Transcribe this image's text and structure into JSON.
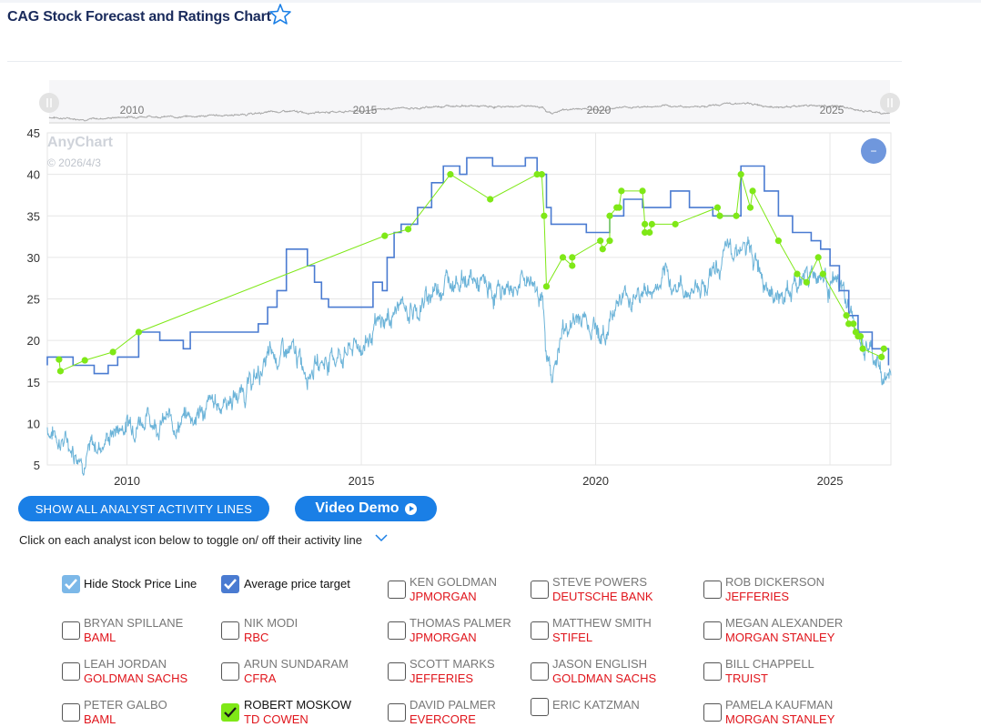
{
  "header": {
    "title": "CAG Stock Forecast and Ratings Chart"
  },
  "navigator": {
    "year_labels": [
      "2010",
      "2015",
      "2020",
      "2025"
    ]
  },
  "watermark": {
    "brand": "AnyChart",
    "date": "© 2026/4/3"
  },
  "chart_data": {
    "type": "line",
    "xlim": [
      2008.3,
      2026.3
    ],
    "ylim": [
      5,
      45
    ],
    "x_ticks": [
      "2010",
      "2015",
      "2020",
      "2025"
    ],
    "y_ticks": [
      "5",
      "10",
      "15",
      "20",
      "25",
      "30",
      "35",
      "40",
      "45"
    ],
    "grid": true,
    "colors": {
      "price": "#6bb3d8",
      "target": "#4a7bd1",
      "ratings": "#7fe817"
    },
    "series": [
      {
        "key": "target",
        "points": [
          [
            2008.3,
            17
          ],
          [
            2008.3,
            18
          ],
          [
            2008.85,
            18
          ],
          [
            2008.85,
            17
          ],
          [
            2009.3,
            17
          ],
          [
            2009.3,
            16
          ],
          [
            2009.6,
            16
          ],
          [
            2009.6,
            17
          ],
          [
            2009.8,
            17
          ],
          [
            2009.8,
            18
          ],
          [
            2010.25,
            18
          ],
          [
            2010.25,
            21
          ],
          [
            2010.7,
            21
          ],
          [
            2010.7,
            20
          ],
          [
            2011.2,
            20
          ],
          [
            2011.2,
            19
          ],
          [
            2011.35,
            19
          ],
          [
            2011.35,
            21
          ],
          [
            2012.8,
            21
          ],
          [
            2012.8,
            22
          ],
          [
            2013.0,
            22
          ],
          [
            2013.0,
            24
          ],
          [
            2013.2,
            24
          ],
          [
            2013.2,
            26
          ],
          [
            2013.4,
            26
          ],
          [
            2013.4,
            31
          ],
          [
            2013.85,
            31
          ],
          [
            2013.85,
            29
          ],
          [
            2014.0,
            29
          ],
          [
            2014.0,
            27
          ],
          [
            2014.15,
            27
          ],
          [
            2014.15,
            25
          ],
          [
            2014.3,
            25
          ],
          [
            2014.3,
            24
          ],
          [
            2015.25,
            24
          ],
          [
            2015.25,
            27
          ],
          [
            2015.45,
            27
          ],
          [
            2015.45,
            26
          ],
          [
            2015.55,
            26
          ],
          [
            2015.55,
            30
          ],
          [
            2015.7,
            30
          ],
          [
            2015.7,
            33
          ],
          [
            2015.85,
            33
          ],
          [
            2015.85,
            34
          ],
          [
            2016.2,
            34
          ],
          [
            2016.2,
            36
          ],
          [
            2016.5,
            36
          ],
          [
            2016.5,
            39
          ],
          [
            2016.75,
            39
          ],
          [
            2016.75,
            41
          ],
          [
            2017.1,
            41
          ],
          [
            2017.1,
            40
          ],
          [
            2017.25,
            40
          ],
          [
            2017.25,
            42
          ],
          [
            2017.8,
            42
          ],
          [
            2017.8,
            41
          ],
          [
            2018.5,
            41
          ],
          [
            2018.5,
            42
          ],
          [
            2018.75,
            42
          ],
          [
            2018.75,
            40
          ],
          [
            2018.95,
            40
          ],
          [
            2018.95,
            36
          ],
          [
            2019.05,
            36
          ],
          [
            2019.05,
            34
          ],
          [
            2019.8,
            34
          ],
          [
            2019.8,
            33
          ],
          [
            2020.3,
            33
          ],
          [
            2020.3,
            35
          ],
          [
            2020.6,
            35
          ],
          [
            2020.6,
            37
          ],
          [
            2021.0,
            37
          ],
          [
            2021.0,
            36
          ],
          [
            2021.6,
            36
          ],
          [
            2021.6,
            38
          ],
          [
            2022.0,
            38
          ],
          [
            2022.0,
            36
          ],
          [
            2022.5,
            36
          ],
          [
            2022.5,
            35
          ],
          [
            2023.1,
            35
          ],
          [
            2023.1,
            41
          ],
          [
            2023.6,
            41
          ],
          [
            2023.6,
            38
          ],
          [
            2023.9,
            38
          ],
          [
            2023.9,
            35
          ],
          [
            2024.2,
            35
          ],
          [
            2024.2,
            33
          ],
          [
            2024.6,
            33
          ],
          [
            2024.6,
            32
          ],
          [
            2024.8,
            32
          ],
          [
            2024.8,
            31
          ],
          [
            2025.0,
            31
          ],
          [
            2025.0,
            29
          ],
          [
            2025.2,
            29
          ],
          [
            2025.2,
            26
          ],
          [
            2025.4,
            26
          ],
          [
            2025.4,
            23
          ],
          [
            2025.6,
            23
          ],
          [
            2025.6,
            21
          ],
          [
            2025.9,
            21
          ],
          [
            2025.9,
            19
          ],
          [
            2026.25,
            19
          ],
          [
            2026.25,
            17
          ]
        ]
      },
      {
        "key": "ratings",
        "points": [
          [
            2008.55,
            17.7
          ],
          [
            2008.58,
            16.3
          ],
          [
            2009.1,
            17.6
          ],
          [
            2009.7,
            18.6
          ],
          [
            2010.25,
            21.0
          ],
          [
            2015.5,
            32.6
          ],
          [
            2016.0,
            33.4
          ],
          [
            2016.9,
            40.0
          ],
          [
            2017.75,
            37.0
          ],
          [
            2018.75,
            40.0
          ],
          [
            2018.85,
            40.0
          ],
          [
            2018.9,
            35.0
          ],
          [
            2018.95,
            26.5
          ],
          [
            2019.3,
            30.0
          ],
          [
            2019.5,
            29.0
          ],
          [
            2019.5,
            30.0
          ],
          [
            2020.1,
            32.0
          ],
          [
            2020.15,
            31.0
          ],
          [
            2020.3,
            32.0
          ],
          [
            2020.3,
            35.0
          ],
          [
            2020.45,
            36.0
          ],
          [
            2020.5,
            36.0
          ],
          [
            2020.55,
            38.0
          ],
          [
            2021.0,
            38.0
          ],
          [
            2021.05,
            34.0
          ],
          [
            2021.05,
            33.0
          ],
          [
            2021.15,
            33.0
          ],
          [
            2021.2,
            34.0
          ],
          [
            2021.7,
            34.0
          ],
          [
            2022.6,
            36.0
          ],
          [
            2022.65,
            35.0
          ],
          [
            2023.0,
            35.0
          ],
          [
            2023.1,
            40.0
          ],
          [
            2023.3,
            36.0
          ],
          [
            2023.35,
            38.0
          ],
          [
            2023.9,
            32.0
          ],
          [
            2024.3,
            28.0
          ],
          [
            2024.5,
            27.0
          ],
          [
            2024.75,
            30.0
          ],
          [
            2024.85,
            28.0
          ],
          [
            2025.35,
            23.0
          ],
          [
            2025.4,
            22.0
          ],
          [
            2025.5,
            22.0
          ],
          [
            2025.55,
            21.0
          ],
          [
            2025.6,
            20.5
          ],
          [
            2025.65,
            20.5
          ],
          [
            2025.7,
            19.0
          ],
          [
            2026.1,
            18.0
          ],
          [
            2026.15,
            19.0
          ]
        ]
      }
    ]
  },
  "buttons": {
    "show_all": "SHOW ALL ANALYST ACTIVITY LINES",
    "video_demo": "Video Demo",
    "collapse": "−"
  },
  "instructions": "Click on each analyst icon below to toggle on/ off their activity line",
  "toggles": {
    "hide_price": "Hide Stock Price Line",
    "avg_target": "Average price target"
  },
  "analysts": [
    {
      "name": "KEN GOLDMAN",
      "firm": "JPMORGAN"
    },
    {
      "name": "STEVE POWERS",
      "firm": "DEUTSCHE BANK"
    },
    {
      "name": "ROB DICKERSON",
      "firm": "JEFFERIES"
    },
    {
      "name": "BRYAN SPILLANE",
      "firm": "BAML"
    },
    {
      "name": "NIK MODI",
      "firm": "RBC"
    },
    {
      "name": "THOMAS PALMER",
      "firm": "JPMORGAN"
    },
    {
      "name": "MATTHEW SMITH",
      "firm": "STIFEL"
    },
    {
      "name": "MEGAN ALEXANDER",
      "firm": "MORGAN STANLEY"
    },
    {
      "name": "LEAH JORDAN",
      "firm": "GOLDMAN SACHS"
    },
    {
      "name": "ARUN SUNDARAM",
      "firm": "CFRA"
    },
    {
      "name": "SCOTT MARKS",
      "firm": "JEFFERIES"
    },
    {
      "name": "JASON ENGLISH",
      "firm": "GOLDMAN SACHS"
    },
    {
      "name": "BILL CHAPPELL",
      "firm": "TRUIST"
    },
    {
      "name": "PETER GALBO",
      "firm": "BAML"
    },
    {
      "name": "ROBERT MOSKOW",
      "firm": "TD COWEN"
    },
    {
      "name": "DAVID PALMER",
      "firm": "EVERCORE"
    },
    {
      "name": "ERIC KATZMAN",
      "firm": ""
    },
    {
      "name": "PAMELA KAUFMAN",
      "firm": "MORGAN STANLEY"
    }
  ]
}
